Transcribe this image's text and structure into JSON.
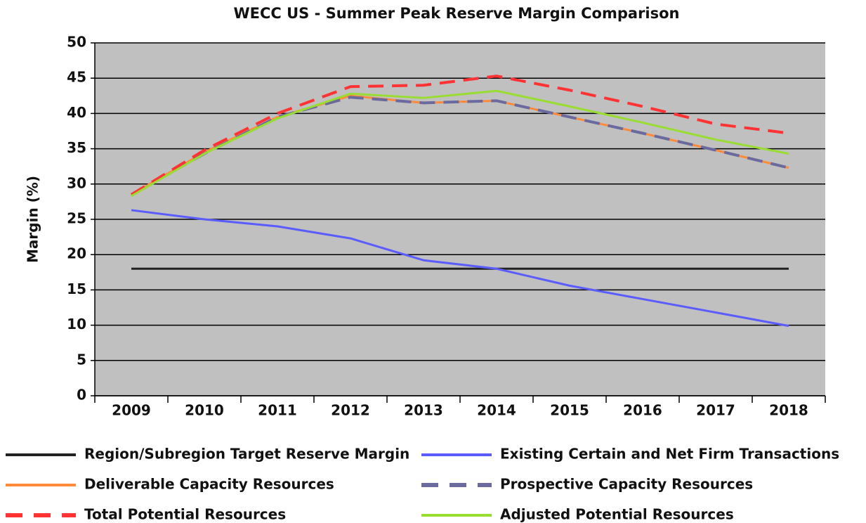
{
  "chart_data": {
    "type": "line",
    "title": "WECC US - Summer Peak Reserve Margin Comparison",
    "y_label": "Margin (%)",
    "categories": [
      "2009",
      "2010",
      "2011",
      "2012",
      "2013",
      "2014",
      "2015",
      "2016",
      "2017",
      "2018"
    ],
    "ylim": [
      0,
      50
    ],
    "yticks": [
      0,
      5,
      10,
      15,
      20,
      25,
      30,
      35,
      40,
      45,
      50
    ],
    "grid": true,
    "series": [
      {
        "name": "Region/Subregion Target Reserve Margin",
        "color": "#222222",
        "values": [
          18,
          18,
          18,
          18,
          18,
          18,
          18,
          18,
          18,
          18
        ]
      },
      {
        "name": "Existing Certain and Net Firm Transactions",
        "color": "#5a5cff",
        "values": [
          26.3,
          25.0,
          24.0,
          22.3,
          19.2,
          18.0,
          15.6,
          13.7,
          11.8,
          9.9
        ]
      },
      {
        "name": "Deliverable Capacity Resources",
        "color": "#ff8a3a",
        "values": [
          28.5,
          34.5,
          39.5,
          42.5,
          41.5,
          41.8,
          39.5,
          37.2,
          34.8,
          32.3
        ]
      },
      {
        "name": "Prospective Capacity Resources",
        "color": "#6a6a9e",
        "dashed": true,
        "values": [
          28.5,
          34.3,
          39.5,
          42.3,
          41.5,
          41.8,
          39.5,
          37.2,
          34.8,
          32.3
        ]
      },
      {
        "name": "Total Potential Resources",
        "color": "#ff3333",
        "dashed": true,
        "values": [
          28.5,
          34.8,
          40.0,
          43.8,
          44.0,
          45.3,
          43.3,
          41.0,
          38.5,
          37.2
        ]
      },
      {
        "name": "Adjusted Potential Resources",
        "color": "#99dd33",
        "values": [
          28.3,
          34.3,
          39.3,
          42.8,
          42.2,
          43.2,
          41.0,
          38.7,
          36.3,
          34.3
        ]
      }
    ]
  }
}
